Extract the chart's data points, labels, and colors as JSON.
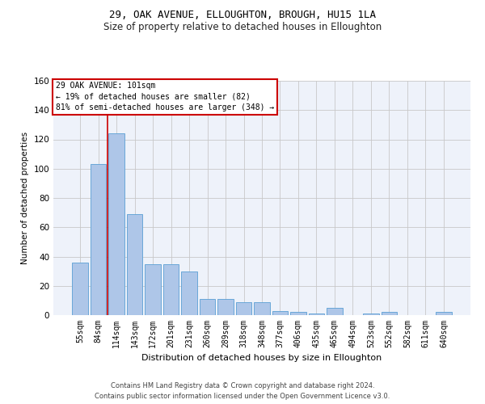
{
  "title": "29, OAK AVENUE, ELLOUGHTON, BROUGH, HU15 1LA",
  "subtitle": "Size of property relative to detached houses in Elloughton",
  "xlabel": "Distribution of detached houses by size in Elloughton",
  "ylabel": "Number of detached properties",
  "categories": [
    "55sqm",
    "84sqm",
    "114sqm",
    "143sqm",
    "172sqm",
    "201sqm",
    "231sqm",
    "260sqm",
    "289sqm",
    "318sqm",
    "348sqm",
    "377sqm",
    "406sqm",
    "435sqm",
    "465sqm",
    "494sqm",
    "523sqm",
    "552sqm",
    "582sqm",
    "611sqm",
    "640sqm"
  ],
  "values": [
    36,
    103,
    124,
    69,
    35,
    35,
    30,
    11,
    11,
    9,
    9,
    3,
    2,
    1,
    5,
    0,
    1,
    2,
    0,
    0,
    2
  ],
  "bar_color": "#aec6e8",
  "bar_edge_color": "#5a9fd4",
  "background_color": "#eef2fa",
  "grid_color": "#c8c8c8",
  "annotation_text": "29 OAK AVENUE: 101sqm\n← 19% of detached houses are smaller (82)\n81% of semi-detached houses are larger (348) →",
  "vline_color": "#cc0000",
  "box_color": "#cc0000",
  "ylim": [
    0,
    160
  ],
  "yticks": [
    0,
    20,
    40,
    60,
    80,
    100,
    120,
    140,
    160
  ],
  "footer_line1": "Contains HM Land Registry data © Crown copyright and database right 2024.",
  "footer_line2": "Contains public sector information licensed under the Open Government Licence v3.0."
}
